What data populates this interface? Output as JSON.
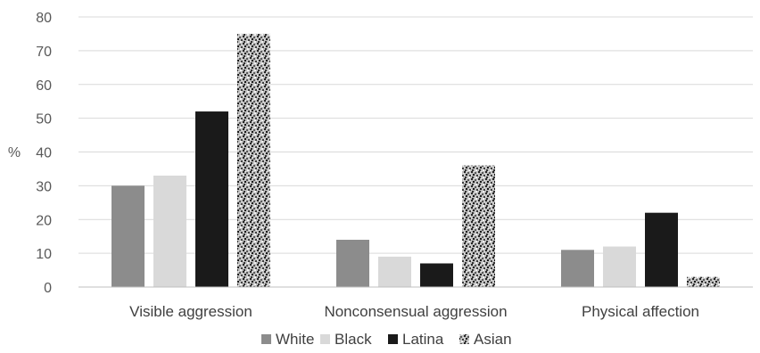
{
  "chart_data": {
    "type": "bar",
    "ylabel": "%",
    "ylim": [
      0,
      80
    ],
    "yticks": [
      0,
      10,
      20,
      30,
      40,
      50,
      60,
      70,
      80
    ],
    "categories": [
      "Visible aggression",
      "Nonconsensual aggression",
      "Physical affection"
    ],
    "series": [
      {
        "name": "White",
        "values": [
          30,
          14,
          11
        ],
        "color": "#8c8c8c",
        "pattern": "solid"
      },
      {
        "name": "Black",
        "values": [
          33,
          9,
          12
        ],
        "color": "#d9d9d9",
        "pattern": "solid"
      },
      {
        "name": "Latina",
        "values": [
          52,
          7,
          22
        ],
        "color": "#1a1a1a",
        "pattern": "solid"
      },
      {
        "name": "Asian",
        "values": [
          75,
          36,
          3
        ],
        "color": "#7f7f7f",
        "pattern": "speckled"
      }
    ],
    "grid": true,
    "legend": "bottom-center"
  }
}
